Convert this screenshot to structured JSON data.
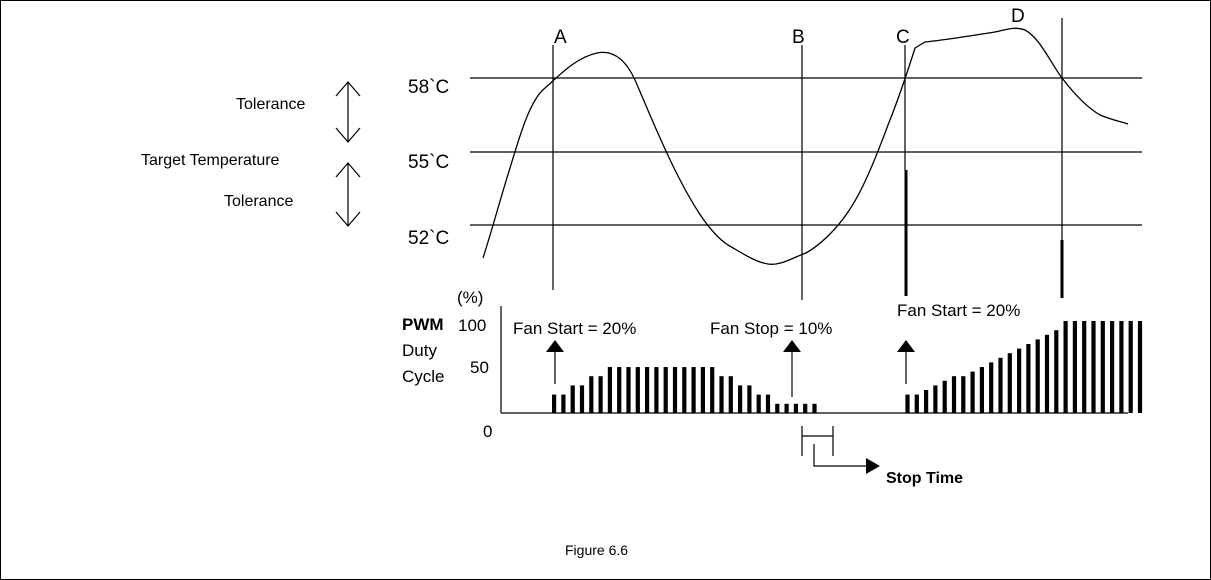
{
  "temperature_levels": {
    "high": "58`C",
    "target": "55`C",
    "low": "52`C"
  },
  "left_labels": {
    "tolerance_upper": "Tolerance",
    "target_temperature": "Target Temperature",
    "tolerance_lower": "Tolerance"
  },
  "markers": [
    "A",
    "B",
    "C",
    "D"
  ],
  "pwm_axis": {
    "title_line1": "PWM",
    "title_line2": "Duty",
    "title_line3": "Cycle",
    "unit": "(%)",
    "tick_100": "100",
    "tick_50": "50",
    "tick_0": "0"
  },
  "annotations": {
    "fan_start_1": "Fan Start = 20%",
    "fan_stop": "Fan Stop = 10%",
    "fan_start_2": "Fan Start = 20%",
    "stop_time": "Stop Time"
  },
  "pwm_duty_percent": [
    20,
    20,
    30,
    30,
    40,
    40,
    50,
    50,
    50,
    50,
    50,
    50,
    50,
    50,
    50,
    50,
    50,
    50,
    40,
    40,
    30,
    30,
    20,
    20,
    10,
    10,
    10,
    10,
    10,
    0,
    0,
    0,
    0,
    0,
    0,
    0,
    0,
    0,
    20,
    20,
    25,
    30,
    35,
    40,
    40,
    45,
    50,
    55,
    60,
    65,
    70,
    75,
    80,
    85,
    90,
    100,
    100,
    100,
    100,
    100,
    100,
    100,
    100,
    100
  ],
  "caption": "Figure 6.6"
}
